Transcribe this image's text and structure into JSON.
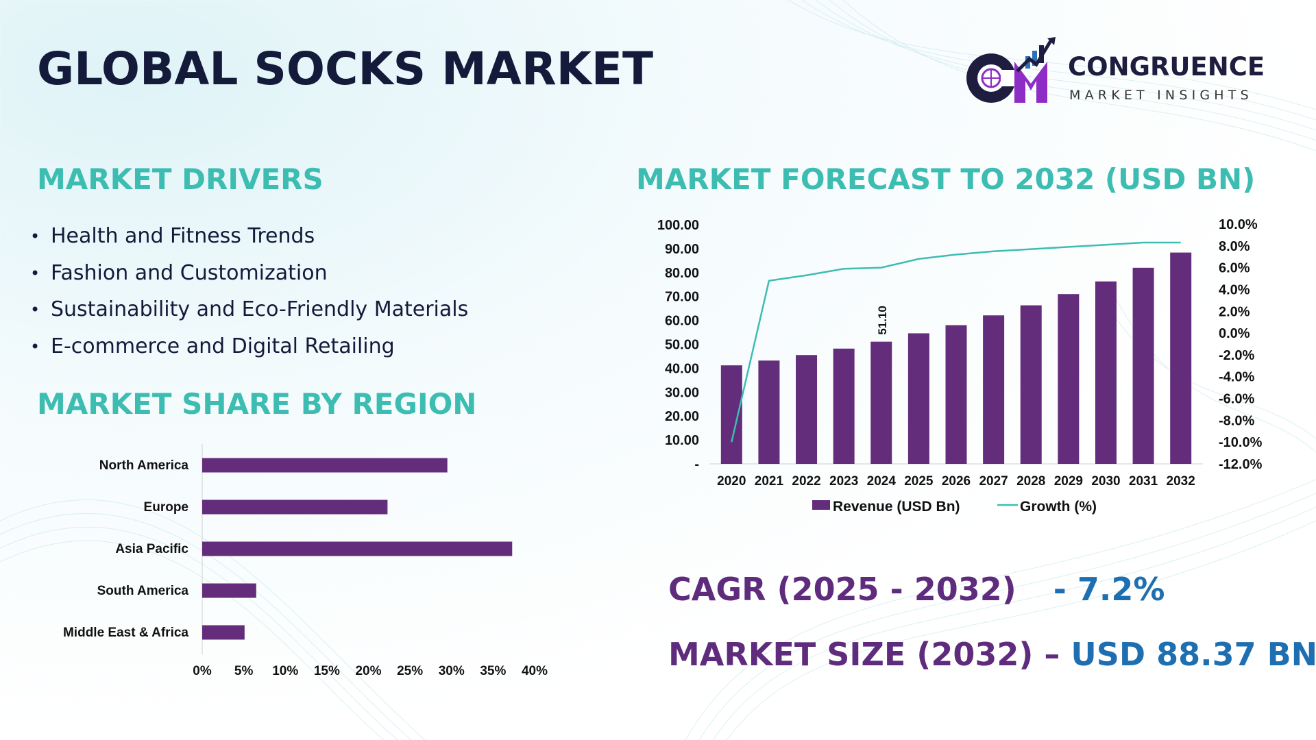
{
  "title": "GLOBAL SOCKS MARKET",
  "logo": {
    "name": "CONGRUENCE",
    "tagline": "MARKET INSIGHTS",
    "icon": "cm-chart-globe-logo",
    "colors": {
      "primary": "#1e1d3f",
      "accent": "#8e2dc6",
      "secondary": "#2d6fb8"
    }
  },
  "drivers": {
    "heading": "MARKET DRIVERS",
    "bullet": "•",
    "items": [
      "Health and Fitness Trends",
      "Fashion and Customization",
      "Sustainability and Eco-Friendly Materials",
      "E-commerce and Digital Retailing"
    ]
  },
  "region_heading": "MARKET SHARE BY REGION",
  "forecast_heading": "MARKET FORECAST TO 2032 (USD BN)",
  "stats": {
    "cagr_label": "CAGR (2025 - 2032)",
    "cagr_value": "- 7.2%",
    "size_label": "MARKET SIZE (2032) –",
    "size_value": "USD 88.37 BN"
  },
  "colors": {
    "heading": "#3dbdb2",
    "bar": "#632d7b",
    "line": "#3dbdb2",
    "stat_label": "#5f2c7d",
    "stat_value": "#1e6fb1",
    "title": "#141a3a"
  },
  "chart_data": [
    {
      "type": "bar",
      "orientation": "horizontal",
      "title": "",
      "categories": [
        "North America",
        "Europe",
        "Asia Pacific",
        "South America",
        "Middle East & Africa"
      ],
      "values": [
        29.5,
        22.3,
        37.3,
        6.5,
        5.1
      ],
      "unit": "%",
      "xlim": [
        0,
        40
      ],
      "x_ticks": [
        "0%",
        "5%",
        "10%",
        "15%",
        "20%",
        "25%",
        "30%",
        "35%",
        "40%"
      ],
      "grid": false,
      "legend": "none"
    },
    {
      "type": "bar+line",
      "title": "",
      "categories": [
        "2020",
        "2021",
        "2022",
        "2023",
        "2024",
        "2025",
        "2026",
        "2027",
        "2028",
        "2029",
        "2030",
        "2031",
        "2032"
      ],
      "series": [
        {
          "name": "Revenue (USD Bn)",
          "type": "bar",
          "axis": "left",
          "values": [
            41.2,
            43.2,
            45.5,
            48.2,
            51.1,
            54.6,
            58.0,
            62.1,
            66.3,
            71.0,
            76.3,
            82.0,
            88.37
          ]
        },
        {
          "name": "Growth (%)",
          "type": "line",
          "axis": "right",
          "values": [
            -10.0,
            4.8,
            5.3,
            5.9,
            6.0,
            6.8,
            7.2,
            7.5,
            7.7,
            7.9,
            8.1,
            8.3,
            8.3
          ]
        }
      ],
      "data_labels": [
        {
          "category": "2024",
          "series": "Revenue (USD Bn)",
          "text": "51.10"
        }
      ],
      "left_axis": {
        "ylim": [
          0,
          100
        ],
        "ticks": [
          0,
          10,
          20,
          30,
          40,
          50,
          60,
          70,
          80,
          90,
          100
        ],
        "tick_labels": [
          "-",
          "10.00",
          "20.00",
          "30.00",
          "40.00",
          "50.00",
          "60.00",
          "70.00",
          "80.00",
          "90.00",
          "100.00"
        ]
      },
      "right_axis": {
        "ylim": [
          -12,
          10
        ],
        "ticks": [
          -12,
          -10,
          -8,
          -6,
          -4,
          -2,
          0,
          2,
          4,
          6,
          8,
          10
        ],
        "tick_labels": [
          "-12.0%",
          "-10.0%",
          "-8.0%",
          "-6.0%",
          "-4.0%",
          "-2.0%",
          "0.0%",
          "2.0%",
          "4.0%",
          "6.0%",
          "8.0%",
          "10.0%"
        ]
      },
      "grid": false,
      "legend": "bottom"
    }
  ]
}
